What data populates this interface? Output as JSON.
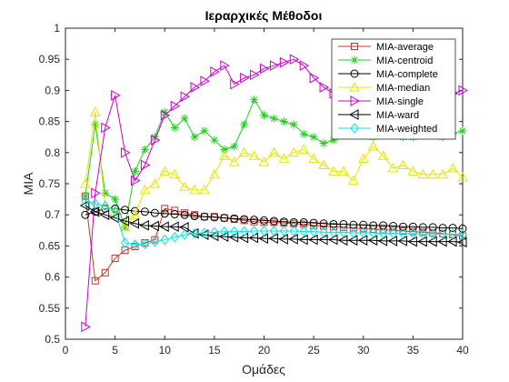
{
  "chart_data": {
    "type": "line",
    "title": "Ιεραρχικές Μέθοδοι",
    "xlabel": "Ομάδες",
    "ylabel": "MIA",
    "xlim": [
      0,
      40
    ],
    "ylim": [
      0.5,
      1
    ],
    "xticks": [
      "0",
      "5",
      "10",
      "15",
      "20",
      "25",
      "30",
      "35",
      "40"
    ],
    "yticks": [
      "0.5",
      "0.55",
      "0.6",
      "0.65",
      "0.7",
      "0.75",
      "0.8",
      "0.85",
      "0.9",
      "0.95",
      "1"
    ],
    "grid": false,
    "legend_position": "top-right",
    "x": [
      2,
      3,
      4,
      5,
      6,
      7,
      8,
      9,
      10,
      11,
      12,
      13,
      14,
      15,
      16,
      17,
      18,
      19,
      20,
      21,
      22,
      23,
      24,
      25,
      26,
      27,
      28,
      29,
      30,
      31,
      32,
      33,
      34,
      35,
      36,
      37,
      38,
      39,
      40
    ],
    "series": [
      {
        "name": "MIA-average",
        "color": "#c0392b",
        "marker": "square",
        "values": [
          0.73,
          0.594,
          0.607,
          0.63,
          0.643,
          0.649,
          0.655,
          0.66,
          0.71,
          0.707,
          0.703,
          0.7,
          0.697,
          0.697,
          0.695,
          0.693,
          0.691,
          0.689,
          0.688,
          0.688,
          0.687,
          0.686,
          0.685,
          0.683,
          0.682,
          0.681,
          0.68,
          0.679,
          0.678,
          0.677,
          0.676,
          0.675,
          0.674,
          0.673,
          0.672,
          0.671,
          0.67,
          0.668,
          0.666
        ]
      },
      {
        "name": "MIA-centroid",
        "color": "#22cc22",
        "marker": "star",
        "values": [
          0.73,
          0.845,
          0.735,
          0.725,
          0.68,
          0.77,
          0.805,
          0.825,
          0.865,
          0.84,
          0.855,
          0.825,
          0.835,
          0.82,
          0.805,
          0.81,
          0.845,
          0.885,
          0.86,
          0.855,
          0.85,
          0.845,
          0.83,
          0.825,
          0.815,
          0.82,
          0.84,
          0.83,
          0.845,
          0.825,
          0.835,
          0.83,
          0.825,
          0.825,
          0.83,
          0.835,
          0.825,
          0.83,
          0.835
        ]
      },
      {
        "name": "MIA-complete",
        "color": "#000000",
        "marker": "circle",
        "values": [
          0.7,
          0.705,
          0.71,
          0.71,
          0.708,
          0.706,
          0.705,
          0.703,
          0.702,
          0.701,
          0.7,
          0.698,
          0.697,
          0.696,
          0.695,
          0.694,
          0.693,
          0.692,
          0.691,
          0.69,
          0.689,
          0.688,
          0.688,
          0.687,
          0.686,
          0.685,
          0.685,
          0.684,
          0.684,
          0.683,
          0.683,
          0.682,
          0.681,
          0.681,
          0.68,
          0.68,
          0.679,
          0.679,
          0.678
        ]
      },
      {
        "name": "MIA-median",
        "color": "#e6e600",
        "marker": "triangle-up",
        "values": [
          0.75,
          0.865,
          0.715,
          0.705,
          0.68,
          0.7,
          0.74,
          0.75,
          0.77,
          0.765,
          0.745,
          0.74,
          0.74,
          0.765,
          0.795,
          0.785,
          0.8,
          0.795,
          0.785,
          0.8,
          0.79,
          0.8,
          0.805,
          0.79,
          0.78,
          0.77,
          0.77,
          0.755,
          0.79,
          0.81,
          0.795,
          0.775,
          0.78,
          0.77,
          0.765,
          0.765,
          0.765,
          0.775,
          0.76
        ]
      },
      {
        "name": "MIA-single",
        "color": "#cc00cc",
        "marker": "triangle-right",
        "values": [
          0.52,
          0.735,
          0.84,
          0.892,
          0.8,
          0.755,
          0.78,
          0.82,
          0.86,
          0.875,
          0.89,
          0.905,
          0.915,
          0.93,
          0.94,
          0.91,
          0.92,
          0.925,
          0.935,
          0.94,
          0.945,
          0.95,
          0.94,
          0.92,
          0.905,
          0.895,
          0.9,
          0.895,
          0.9,
          0.905,
          0.905,
          0.9,
          0.9,
          0.895,
          0.895,
          0.9,
          0.895,
          0.895,
          0.9
        ]
      },
      {
        "name": "MIA-ward",
        "color": "#000000",
        "marker": "triangle-left",
        "values": [
          0.715,
          0.705,
          0.7,
          0.695,
          0.69,
          0.686,
          0.683,
          0.682,
          0.681,
          0.681,
          0.68,
          0.67,
          0.668,
          0.666,
          0.665,
          0.664,
          0.663,
          0.663,
          0.662,
          0.662,
          0.661,
          0.661,
          0.66,
          0.66,
          0.66,
          0.66,
          0.659,
          0.659,
          0.659,
          0.659,
          0.658,
          0.658,
          0.658,
          0.657,
          0.657,
          0.657,
          0.657,
          0.657,
          0.656
        ]
      },
      {
        "name": "MIA-weighted",
        "color": "#00e5e5",
        "marker": "diamond",
        "values": [
          0.722,
          0.718,
          0.714,
          0.707,
          0.655,
          0.652,
          0.653,
          0.657,
          0.66,
          0.664,
          0.668,
          0.67,
          0.671,
          0.672,
          0.673,
          0.673,
          0.673,
          0.674,
          0.674,
          0.674,
          0.674,
          0.674,
          0.673,
          0.673,
          0.672,
          0.672,
          0.672,
          0.671,
          0.671,
          0.671,
          0.67,
          0.67,
          0.67,
          0.67,
          0.669,
          0.669,
          0.669,
          0.669,
          0.668
        ]
      }
    ]
  }
}
